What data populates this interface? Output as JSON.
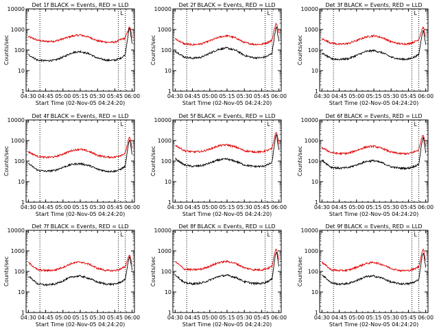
{
  "colors": {
    "events": "#000000",
    "lld": "#e00000",
    "axes": "#000000",
    "background": "#ffffff"
  },
  "shared": {
    "xlabel": "Start Time (02-Nov-05 04:24:20)",
    "ylabel": "Counts/sec",
    "x_tick_labels": [
      "04:30",
      "04:45",
      "05:00",
      "05:15",
      "05:30",
      "05:45",
      "06:00"
    ],
    "y_tick_labels": [
      "1",
      "10",
      "100",
      "1000",
      "10000"
    ],
    "marker_label": "L"
  },
  "chart_data": [
    {
      "type": "line",
      "title": "Det 1f BLACK = Events, RED = LLD",
      "xlabel": "Start Time (02-Nov-05 04:24:20)",
      "ylabel": "Counts/sec",
      "y_scale": "log",
      "ylim": [
        1,
        10000
      ],
      "xlim": [
        "04:28",
        "06:02"
      ],
      "x_tick_labels": [
        "04:30",
        "04:45",
        "05:00",
        "05:15",
        "05:30",
        "05:45",
        "06:00"
      ],
      "y_tick_labels": [
        "1",
        "10",
        "100",
        "1000",
        "10000"
      ],
      "dotted_vertical_lines": [
        "04:40",
        "05:48",
        "05:54"
      ],
      "series": [
        {
          "color": "#e00000",
          "x": [
            "04:30",
            "04:38",
            "04:45",
            "04:53",
            "05:00",
            "05:08",
            "05:15",
            "05:23",
            "05:30",
            "05:38",
            "05:45",
            "05:50",
            "05:54",
            "05:57",
            "05:58",
            "06:00"
          ],
          "values": [
            450,
            300,
            260,
            270,
            350,
            480,
            540,
            420,
            280,
            240,
            240,
            320,
            380,
            1100,
            1400,
            400
          ]
        },
        {
          "color": "#000000",
          "x": [
            "04:30",
            "04:38",
            "04:45",
            "04:53",
            "05:00",
            "05:08",
            "05:15",
            "05:23",
            "05:30",
            "05:38",
            "05:45",
            "05:50",
            "05:54",
            "05:57",
            "05:58",
            "06:00"
          ],
          "values": [
            60,
            32,
            30,
            32,
            45,
            75,
            85,
            65,
            40,
            32,
            32,
            40,
            60,
            900,
            1100,
            200
          ]
        }
      ]
    },
    {
      "type": "line",
      "title": "Det 2f BLACK = Events, RED = LLD",
      "xlabel": "Start Time (02-Nov-05 04:24:20)",
      "ylabel": "Counts/sec",
      "y_scale": "log",
      "ylim": [
        1,
        10000
      ],
      "xlim": [
        "04:28",
        "06:02"
      ],
      "x_tick_labels": [
        "04:30",
        "04:45",
        "05:00",
        "05:15",
        "05:30",
        "05:45",
        "06:00"
      ],
      "y_tick_labels": [
        "1",
        "10",
        "100",
        "1000",
        "10000"
      ],
      "dotted_vertical_lines": [
        "04:40",
        "05:48",
        "05:54"
      ],
      "series": [
        {
          "color": "#e00000",
          "x": [
            "04:30",
            "04:38",
            "04:45",
            "04:53",
            "05:00",
            "05:08",
            "05:15",
            "05:23",
            "05:30",
            "05:38",
            "05:45",
            "05:50",
            "05:54",
            "05:57",
            "05:58",
            "06:00"
          ],
          "values": [
            350,
            200,
            180,
            200,
            280,
            420,
            500,
            380,
            230,
            190,
            190,
            230,
            300,
            1800,
            1900,
            600
          ]
        },
        {
          "color": "#000000",
          "x": [
            "04:30",
            "04:38",
            "04:45",
            "04:53",
            "05:00",
            "05:08",
            "05:15",
            "05:23",
            "05:30",
            "05:38",
            "05:45",
            "05:50",
            "05:54",
            "05:57",
            "05:58",
            "06:00"
          ],
          "values": [
            90,
            45,
            40,
            45,
            70,
            110,
            125,
            95,
            55,
            42,
            42,
            50,
            70,
            1000,
            1300,
            250
          ]
        }
      ]
    },
    {
      "type": "line",
      "title": "Det 3f BLACK = Events, RED = LLD",
      "xlabel": "Start Time (02-Nov-05 04:24:20)",
      "ylabel": "Counts/sec",
      "y_scale": "log",
      "ylim": [
        1,
        10000
      ],
      "xlim": [
        "04:28",
        "06:02"
      ],
      "x_tick_labels": [
        "04:30",
        "04:45",
        "05:00",
        "05:15",
        "05:30",
        "05:45",
        "06:00"
      ],
      "y_tick_labels": [
        "1",
        "10",
        "100",
        "1000",
        "10000"
      ],
      "dotted_vertical_lines": [
        "04:40",
        "05:48",
        "05:54"
      ],
      "series": [
        {
          "color": "#e00000",
          "x": [
            "04:30",
            "04:38",
            "04:45",
            "04:53",
            "05:00",
            "05:08",
            "05:15",
            "05:23",
            "05:30",
            "05:38",
            "05:45",
            "05:50",
            "05:54",
            "05:57",
            "05:58",
            "06:00"
          ],
          "values": [
            350,
            220,
            190,
            210,
            290,
            430,
            500,
            390,
            250,
            200,
            200,
            250,
            320,
            1100,
            1300,
            400
          ]
        },
        {
          "color": "#000000",
          "x": [
            "04:30",
            "04:38",
            "04:45",
            "04:53",
            "05:00",
            "05:08",
            "05:15",
            "05:23",
            "05:30",
            "05:38",
            "05:45",
            "05:50",
            "05:54",
            "05:57",
            "05:58",
            "06:00"
          ],
          "values": [
            70,
            38,
            35,
            38,
            55,
            85,
            95,
            72,
            45,
            36,
            36,
            45,
            60,
            700,
            900,
            180
          ]
        }
      ]
    },
    {
      "type": "line",
      "title": "Det 4f BLACK = Events, RED = LLD",
      "xlabel": "Start Time (02-Nov-05 04:24:20)",
      "ylabel": "Counts/sec",
      "y_scale": "log",
      "ylim": [
        1,
        10000
      ],
      "xlim": [
        "04:28",
        "06:02"
      ],
      "x_tick_labels": [
        "04:30",
        "04:45",
        "05:00",
        "05:15",
        "05:30",
        "05:45",
        "06:00"
      ],
      "y_tick_labels": [
        "1",
        "10",
        "100",
        "1000",
        "10000"
      ],
      "dotted_vertical_lines": [
        "04:40",
        "05:48",
        "05:54"
      ],
      "series": [
        {
          "color": "#e00000",
          "x": [
            "04:30",
            "04:38",
            "04:45",
            "04:53",
            "05:00",
            "05:08",
            "05:15",
            "05:23",
            "05:30",
            "05:38",
            "05:45",
            "05:50",
            "05:54",
            "05:57",
            "05:58",
            "06:00"
          ],
          "values": [
            280,
            170,
            150,
            160,
            220,
            330,
            380,
            290,
            190,
            155,
            155,
            190,
            240,
            1200,
            1400,
            450
          ]
        },
        {
          "color": "#000000",
          "x": [
            "04:30",
            "04:38",
            "04:45",
            "04:53",
            "05:00",
            "05:08",
            "05:15",
            "05:23",
            "05:30",
            "05:38",
            "05:45",
            "05:50",
            "05:54",
            "05:57",
            "05:58",
            "06:00"
          ],
          "values": [
            75,
            36,
            32,
            35,
            50,
            70,
            75,
            60,
            40,
            32,
            32,
            40,
            55,
            800,
            1000,
            200
          ]
        }
      ]
    },
    {
      "type": "line",
      "title": "Det 5f BLACK = Events, RED = LLD",
      "xlabel": "Start Time (02-Nov-05 04:24:20)",
      "ylabel": "Counts/sec",
      "y_scale": "log",
      "ylim": [
        1,
        10000
      ],
      "xlim": [
        "04:28",
        "06:02"
      ],
      "x_tick_labels": [
        "04:30",
        "04:45",
        "05:00",
        "05:15",
        "05:30",
        "05:45",
        "06:00"
      ],
      "y_tick_labels": [
        "1",
        "10",
        "100",
        "1000",
        "10000"
      ],
      "dotted_vertical_lines": [
        "04:40",
        "05:48",
        "05:54"
      ],
      "series": [
        {
          "color": "#e00000",
          "x": [
            "04:30",
            "04:38",
            "04:45",
            "04:53",
            "05:00",
            "05:08",
            "05:15",
            "05:23",
            "05:30",
            "05:38",
            "05:45",
            "05:50",
            "05:54",
            "05:57",
            "05:58",
            "06:00"
          ],
          "values": [
            600,
            320,
            280,
            290,
            380,
            560,
            620,
            470,
            320,
            280,
            280,
            330,
            400,
            2200,
            2500,
            700
          ]
        },
        {
          "color": "#000000",
          "x": [
            "04:30",
            "04:38",
            "04:45",
            "04:53",
            "05:00",
            "05:08",
            "05:15",
            "05:23",
            "05:30",
            "05:38",
            "05:45",
            "05:50",
            "05:54",
            "05:57",
            "05:58",
            "06:00"
          ],
          "values": [
            130,
            65,
            55,
            60,
            80,
            115,
            125,
            95,
            65,
            55,
            55,
            65,
            85,
            1500,
            1800,
            300
          ]
        }
      ]
    },
    {
      "type": "line",
      "title": "Det 6f BLACK = Events, RED = LLD",
      "xlabel": "Start Time (02-Nov-05 04:24:20)",
      "ylabel": "Counts/sec",
      "y_scale": "log",
      "ylim": [
        1,
        10000
      ],
      "xlim": [
        "04:28",
        "06:02"
      ],
      "x_tick_labels": [
        "04:30",
        "04:45",
        "05:00",
        "05:15",
        "05:30",
        "05:45",
        "06:00"
      ],
      "y_tick_labels": [
        "1",
        "10",
        "100",
        "1000",
        "10000"
      ],
      "dotted_vertical_lines": [
        "04:40",
        "05:48",
        "05:54"
      ],
      "series": [
        {
          "color": "#e00000",
          "x": [
            "04:30",
            "04:38",
            "04:45",
            "04:53",
            "05:00",
            "05:08",
            "05:15",
            "05:23",
            "05:30",
            "05:38",
            "05:45",
            "05:50",
            "05:54",
            "05:57",
            "05:58",
            "06:00"
          ],
          "values": [
            450,
            260,
            230,
            240,
            330,
            480,
            530,
            400,
            270,
            230,
            230,
            280,
            350,
            1700,
            2000,
            550
          ]
        },
        {
          "color": "#000000",
          "x": [
            "04:30",
            "04:38",
            "04:45",
            "04:53",
            "05:00",
            "05:08",
            "05:15",
            "05:23",
            "05:30",
            "05:38",
            "05:45",
            "05:50",
            "05:54",
            "05:57",
            "05:58",
            "06:00"
          ],
          "values": [
            110,
            50,
            45,
            48,
            65,
            95,
            105,
            80,
            52,
            45,
            45,
            55,
            70,
            1100,
            1400,
            250
          ]
        }
      ]
    },
    {
      "type": "line",
      "title": "Det 7f BLACK = Events, RED = LLD",
      "xlabel": "Start Time (02-Nov-05 04:24:20)",
      "ylabel": "Counts/sec",
      "y_scale": "log",
      "ylim": [
        1,
        10000
      ],
      "xlim": [
        "04:28",
        "06:02"
      ],
      "x_tick_labels": [
        "04:30",
        "04:45",
        "05:00",
        "05:15",
        "05:30",
        "05:45",
        "06:00"
      ],
      "y_tick_labels": [
        "1",
        "10",
        "100",
        "1000",
        "10000"
      ],
      "dotted_vertical_lines": [
        "04:40",
        "05:48",
        "05:54"
      ],
      "series": [
        {
          "color": "#e00000",
          "x": [
            "04:30",
            "04:38",
            "04:45",
            "04:53",
            "05:00",
            "05:08",
            "05:15",
            "05:23",
            "05:30",
            "05:38",
            "05:45",
            "05:50",
            "05:54",
            "05:57",
            "05:58",
            "06:00"
          ],
          "values": [
            270,
            120,
            110,
            115,
            160,
            250,
            290,
            220,
            140,
            110,
            110,
            130,
            170,
            550,
            650,
            200
          ]
        },
        {
          "color": "#000000",
          "x": [
            "04:30",
            "04:38",
            "04:45",
            "04:53",
            "05:00",
            "05:08",
            "05:15",
            "05:23",
            "05:30",
            "05:38",
            "05:45",
            "05:50",
            "05:54",
            "05:57",
            "05:58",
            "06:00"
          ],
          "values": [
            60,
            25,
            22,
            24,
            35,
            55,
            60,
            45,
            30,
            24,
            24,
            30,
            40,
            400,
            500,
            120
          ]
        }
      ]
    },
    {
      "type": "line",
      "title": "Det 8f BLACK = Events, RED = LLD",
      "xlabel": "Start Time (02-Nov-05 04:24:20)",
      "ylabel": "Counts/sec",
      "y_scale": "log",
      "ylim": [
        1,
        10000
      ],
      "xlim": [
        "04:28",
        "06:02"
      ],
      "x_tick_labels": [
        "04:30",
        "04:45",
        "05:00",
        "05:15",
        "05:30",
        "05:45",
        "06:00"
      ],
      "y_tick_labels": [
        "1",
        "10",
        "100",
        "1000",
        "10000"
      ],
      "dotted_vertical_lines": [
        "04:40",
        "05:48",
        "05:54"
      ],
      "series": [
        {
          "color": "#e00000",
          "x": [
            "04:30",
            "04:38",
            "04:45",
            "04:53",
            "05:00",
            "05:08",
            "05:15",
            "05:23",
            "05:30",
            "05:38",
            "05:45",
            "05:50",
            "05:54",
            "05:57",
            "05:58",
            "06:00"
          ],
          "values": [
            300,
            130,
            120,
            130,
            180,
            270,
            310,
            240,
            150,
            120,
            120,
            140,
            180,
            1100,
            1300,
            350
          ]
        },
        {
          "color": "#000000",
          "x": [
            "04:30",
            "04:38",
            "04:45",
            "04:53",
            "05:00",
            "05:08",
            "05:15",
            "05:23",
            "05:30",
            "05:38",
            "05:45",
            "05:50",
            "05:54",
            "05:57",
            "05:58",
            "06:00"
          ],
          "values": [
            70,
            28,
            25,
            27,
            38,
            58,
            65,
            50,
            32,
            26,
            26,
            32,
            42,
            700,
            900,
            180
          ]
        }
      ]
    },
    {
      "type": "line",
      "title": "Det 9f BLACK = Events, RED = LLD",
      "xlabel": "Start Time (02-Nov-05 04:24:20)",
      "ylabel": "Counts/sec",
      "y_scale": "log",
      "ylim": [
        1,
        10000
      ],
      "xlim": [
        "04:28",
        "06:02"
      ],
      "x_tick_labels": [
        "04:30",
        "04:45",
        "05:00",
        "05:15",
        "05:30",
        "05:45",
        "06:00"
      ],
      "y_tick_labels": [
        "1",
        "10",
        "100",
        "1000",
        "10000"
      ],
      "dotted_vertical_lines": [
        "04:40",
        "05:48",
        "05:54"
      ],
      "series": [
        {
          "color": "#e00000",
          "x": [
            "04:30",
            "04:38",
            "04:45",
            "04:53",
            "05:00",
            "05:08",
            "05:15",
            "05:23",
            "05:30",
            "05:38",
            "05:45",
            "05:50",
            "05:54",
            "05:57",
            "05:58",
            "06:00"
          ],
          "values": [
            280,
            120,
            110,
            115,
            160,
            240,
            280,
            210,
            140,
            110,
            110,
            130,
            170,
            1000,
            1200,
            320
          ]
        },
        {
          "color": "#000000",
          "x": [
            "04:30",
            "04:38",
            "04:45",
            "04:53",
            "05:00",
            "05:08",
            "05:15",
            "05:23",
            "05:30",
            "05:38",
            "05:45",
            "05:50",
            "05:54",
            "05:57",
            "05:58",
            "06:00"
          ],
          "values": [
            70,
            28,
            24,
            26,
            36,
            55,
            60,
            46,
            30,
            25,
            25,
            30,
            40,
            650,
            800,
            160
          ]
        }
      ]
    }
  ]
}
